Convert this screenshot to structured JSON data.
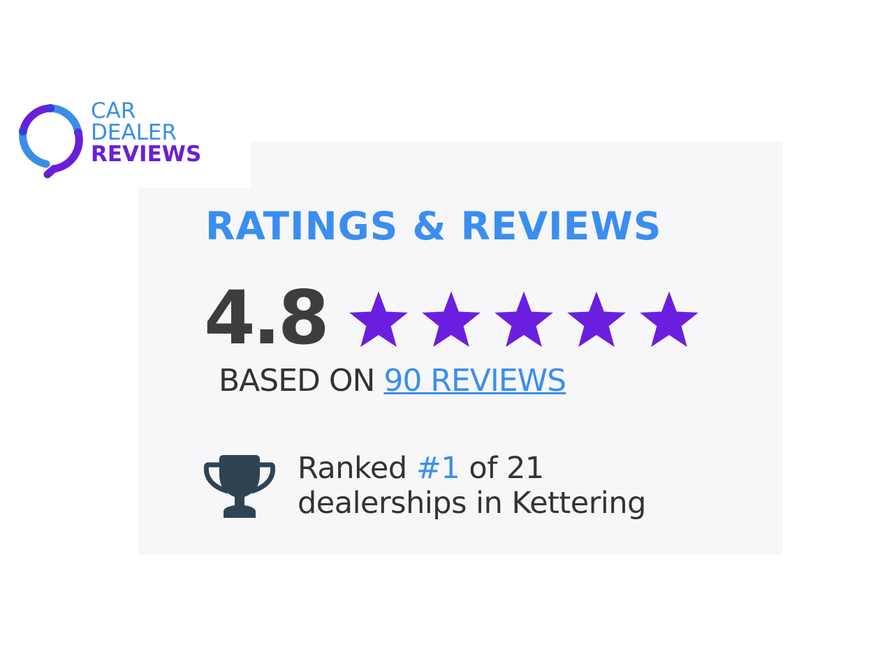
{
  "brand": {
    "line1": "CAR",
    "line2": "DEALER",
    "line3": "REVIEWS",
    "colors": {
      "blue": "#3a8ee6",
      "purple": "#6a1fd6"
    }
  },
  "widget": {
    "title": "RATINGS & REVIEWS",
    "score": "4.8",
    "stars": {
      "rating": 4.8,
      "max": 5,
      "icon": "star-icon",
      "color": "#6a1fe0"
    },
    "based_on": "BASED ON",
    "reviews_link": "90 REVIEWS",
    "rank": {
      "icon": "trophy-icon",
      "prefix": "Ranked",
      "position": "#1",
      "suffix": "of 21",
      "line2": "dealerships in Kettering"
    }
  }
}
